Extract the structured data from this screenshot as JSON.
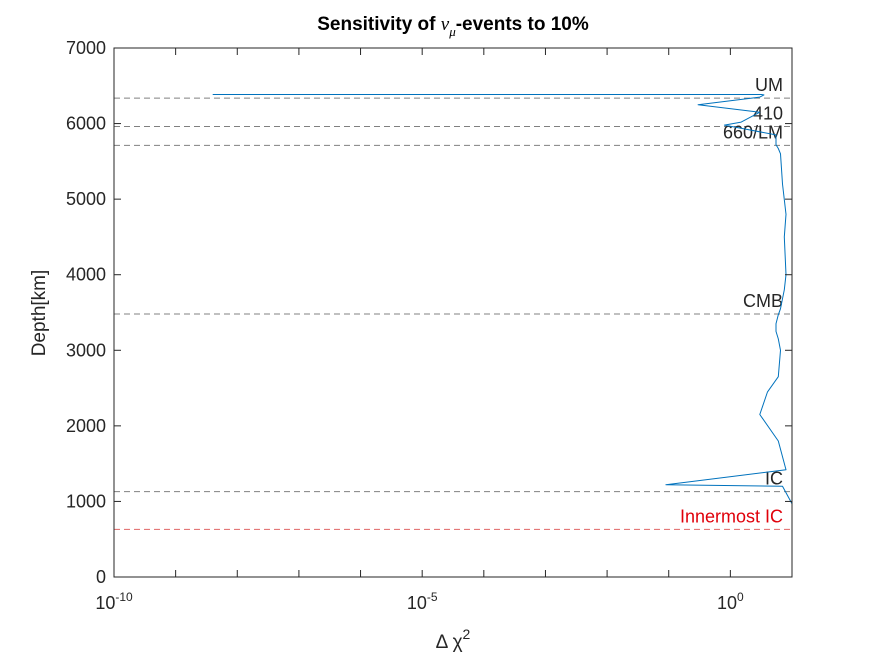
{
  "chart_data": {
    "type": "line",
    "title": {
      "prefix": "Sensitivity of ",
      "symbol": "ν",
      "subscript": "μ",
      "suffix": "-events to 10%"
    },
    "xlabel": {
      "symbol": "Δ χ",
      "superscript": "2"
    },
    "ylabel": "Depth[km]",
    "x_scale": "log",
    "xlim": [
      1e-10,
      10
    ],
    "ylim": [
      0,
      7000
    ],
    "x_ticks": [
      {
        "value": 1e-10,
        "base": "10",
        "exp": "-10"
      },
      {
        "value": 1e-05,
        "base": "10",
        "exp": "-5"
      },
      {
        "value": 1,
        "base": "10",
        "exp": "0"
      }
    ],
    "y_ticks": [
      {
        "value": 0,
        "label": "0"
      },
      {
        "value": 1000,
        "label": "1000"
      },
      {
        "value": 2000,
        "label": "2000"
      },
      {
        "value": 3000,
        "label": "3000"
      },
      {
        "value": 4000,
        "label": "4000"
      },
      {
        "value": 5000,
        "label": "5000"
      },
      {
        "value": 6000,
        "label": "6000"
      },
      {
        "value": 7000,
        "label": "7000"
      }
    ],
    "grid": false,
    "series": [
      {
        "color": "#0072BD",
        "x": [
          10,
          7,
          0.09,
          8,
          6,
          3,
          4,
          6,
          6.5,
          6,
          5.5,
          5.5,
          6,
          6.5,
          7.5,
          8,
          7.5,
          8,
          7,
          6.5,
          6,
          5.5,
          5.5,
          0.8,
          1.5,
          3,
          0.3,
          3,
          3.5,
          3.2,
          4e-09
        ],
        "y": [
          970,
          1200,
          1220,
          1420,
          1800,
          2150,
          2450,
          2650,
          3000,
          3150,
          3250,
          3350,
          3470,
          3550,
          3800,
          4000,
          4500,
          4800,
          5200,
          5600,
          5670,
          5720,
          5850,
          5980,
          6020,
          6150,
          6250,
          6350,
          6380,
          6385,
          6385
        ]
      }
    ],
    "reference_lines": [
      {
        "name": "UM",
        "y": 6336,
        "color": "#808080",
        "label_color": "#262626"
      },
      {
        "name": "410",
        "y": 5961,
        "color": "#808080",
        "label_color": "#262626"
      },
      {
        "name": "660/LM",
        "y": 5711,
        "color": "#808080",
        "label_color": "#262626"
      },
      {
        "name": "CMB",
        "y": 3480,
        "color": "#808080",
        "label_color": "#262626"
      },
      {
        "name": "IC",
        "y": 1130,
        "color": "#808080",
        "label_color": "#262626"
      },
      {
        "name": "Innermost IC",
        "y": 630,
        "color": "#E06666",
        "label_color": "#E0000A"
      }
    ]
  }
}
